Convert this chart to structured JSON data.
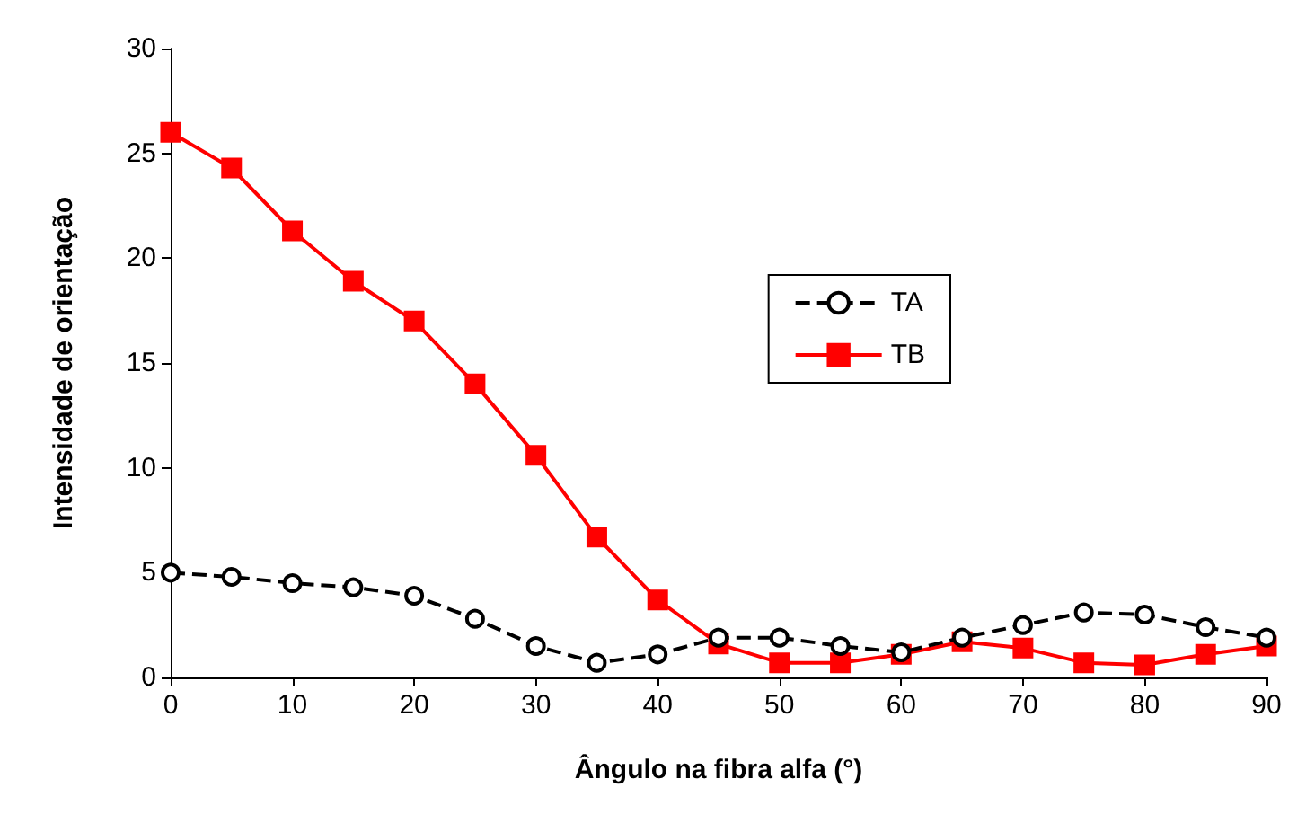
{
  "chart_data": {
    "type": "line",
    "xlabel": "Ângulo na fibra alfa (°)",
    "ylabel": "Intensidade de orientação",
    "x": [
      0,
      5,
      10,
      15,
      20,
      25,
      30,
      35,
      40,
      45,
      50,
      55,
      60,
      65,
      70,
      75,
      80,
      85,
      90
    ],
    "series": [
      {
        "name": "TA",
        "color": "#000000",
        "marker": "circle",
        "line_style": "dashed",
        "values": [
          5.0,
          4.8,
          4.5,
          4.3,
          3.9,
          2.8,
          1.5,
          0.7,
          1.1,
          1.9,
          1.9,
          1.5,
          1.2,
          1.9,
          2.5,
          3.1,
          3.0,
          2.4,
          1.9
        ]
      },
      {
        "name": "TB",
        "color": "#ff0000",
        "marker": "square",
        "line_style": "solid",
        "values": [
          26.0,
          24.3,
          21.3,
          18.9,
          17.0,
          14.0,
          10.6,
          6.7,
          3.7,
          1.6,
          0.7,
          0.7,
          1.1,
          1.7,
          1.4,
          0.7,
          0.6,
          1.1,
          1.5
        ]
      }
    ],
    "xlim": [
      0,
      90
    ],
    "xticks": [
      0,
      10,
      20,
      30,
      40,
      50,
      60,
      70,
      80,
      90
    ],
    "ylim": [
      0,
      30
    ],
    "yticks": [
      0,
      5,
      10,
      15,
      20,
      25,
      30
    ],
    "grid": false,
    "legend": "right"
  }
}
